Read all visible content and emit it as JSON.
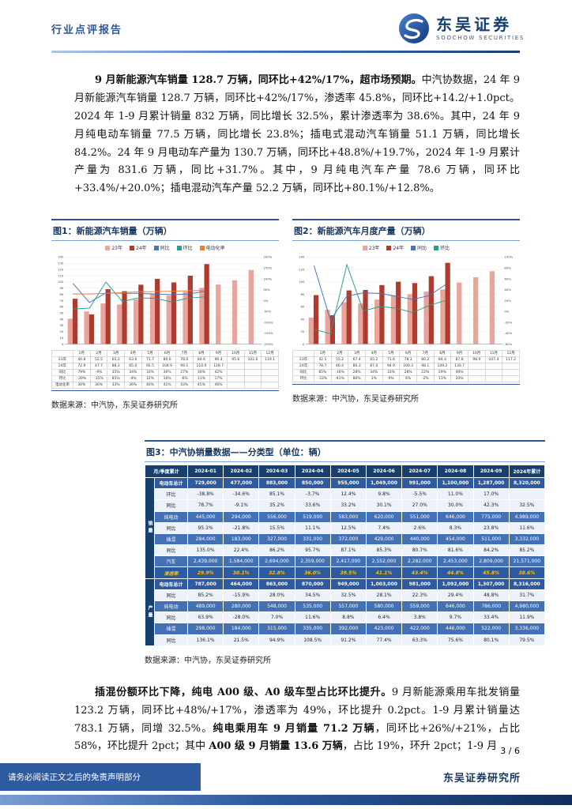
{
  "header": {
    "report_type": "行业点评报告",
    "brand_cn": "东吴证券",
    "brand_en": "SOOCHOW SECURITIES"
  },
  "para1": {
    "segments": [
      {
        "b": true,
        "t": "9 月新能源汽车销量 128.7 万辆，同环比+42%/17%，超市场预期。"
      },
      {
        "b": false,
        "t": "中汽协数据，24 年 9 月新能源汽车销量 128.7 万辆，同环比+42%/17%，渗透率 45.8%，同环比+14.2/+1.0pct。2024 年 1-9 月累计销量 832 万辆，同比增长 32.5%，累计渗透率为 38.6%。其中，24 年 9 月纯电动车销量 77.5 万辆，同比增长 23.8%；插电式混动汽车销量 51.1 万辆，同比增长 84.2%。24 年 9 月电动车产量为 130.7 万辆，同环比+48.8%/+19.7%，2024 年 1-9 月累计产量为 831.6 万辆，同比+31.7%。其中，9 月纯电汽车产量 78.6 万辆，同环比+33.4%/+20.0%；插电混动汽车产量 52.2 万辆，同环比+80.1%/+12.8%。"
      }
    ]
  },
  "para2": {
    "segments": [
      {
        "b": true,
        "t": "插混份额环比下降，纯电 A00 级、A0 级车型占比环比提升。"
      },
      {
        "b": false,
        "t": "9 月新能源乘用车批发销量 123.2 万辆，同环比+48%/+17%，渗透率为 49%，环比提升 0.2pct。1-9 月累计销量达 783.1 万辆，同增 32.5%。"
      },
      {
        "b": true,
        "t": "纯电乘用车 9 月销量 71.2 万辆"
      },
      {
        "b": false,
        "t": "，同环比+26%/+21%，占比 58%，环比提升 2pct；其中 "
      },
      {
        "b": true,
        "t": "A00 级 9 月销量 13.6 万辆"
      },
      {
        "b": false,
        "t": "，占比 19%，环升 2pct；1-9 月"
      }
    ]
  },
  "chart_data": [
    {
      "id": "fig1",
      "type": "bar",
      "subtype": "combo-bar-line",
      "title": "图1：新能源汽车销量（万辆）",
      "source": "数据来源：中汽协，东吴证券研究所",
      "months": [
        "1月",
        "2月",
        "3月",
        "4月",
        "5月",
        "6月",
        "7月",
        "8月",
        "9月",
        "10月",
        "11月",
        "12月"
      ],
      "left_axis": {
        "min": 0,
        "max": 140,
        "step": 10
      },
      "right_axis": {
        "min": -200,
        "max": 200,
        "step": 50
      },
      "bars": [
        {
          "name": "23年",
          "color": "#E9A49C",
          "values": [
            40.8,
            52.5,
            65.3,
            63.6,
            71.7,
            80.6,
            78.0,
            84.6,
            90.4,
            95.6,
            102.6,
            119.1
          ]
        },
        {
          "name": "24年",
          "color": "#B03A2E",
          "values": [
            72.9,
            47.7,
            88.3,
            85.0,
            95.5,
            104.9,
            99.1,
            110.0,
            128.7,
            null,
            null,
            null
          ]
        }
      ],
      "lines": [
        {
          "name": "同比",
          "color": "#4472C4",
          "values": [
            79,
            -9,
            35,
            34,
            33,
            30,
            27,
            30,
            42,
            null,
            null,
            null
          ]
        },
        {
          "name": "环比",
          "color": "#23A08C",
          "values": [
            -39,
            -35,
            85,
            -4,
            12,
            10,
            -6,
            11,
            17,
            null,
            null,
            null
          ]
        },
        {
          "name": "电动化率",
          "color": "#ED7D31",
          "values": [
            30,
            30,
            33,
            36,
            40,
            41,
            43,
            45,
            46,
            null,
            null,
            null
          ]
        }
      ],
      "table_rows": [
        {
          "label": "23年",
          "cells": [
            "40.8",
            "52.5",
            "65.3",
            "63.6",
            "71.7",
            "80.6",
            "78.0",
            "84.6",
            "90.4",
            "95.6",
            "102.6",
            "119.1"
          ]
        },
        {
          "label": "24年",
          "cells": [
            "72.9",
            "47.7",
            "88.3",
            "85.0",
            "95.5",
            "104.9",
            "99.1",
            "110.0",
            "128.7",
            "",
            "",
            ""
          ]
        },
        {
          "label": "同比",
          "cells": [
            "79%",
            "-9%",
            "35%",
            "34%",
            "33%",
            "30%",
            "27%",
            "30%",
            "42%",
            "",
            "",
            ""
          ]
        },
        {
          "label": "环比",
          "cells": [
            "-39%",
            "-35%",
            "85%",
            "-4%",
            "12%",
            "10%",
            "-6%",
            "11%",
            "17%",
            "",
            "",
            ""
          ]
        },
        {
          "label": "电动化率",
          "cells": [
            "30%",
            "30%",
            "33%",
            "36%",
            "40%",
            "41%",
            "43%",
            "45%",
            "46%",
            "",
            "",
            ""
          ]
        }
      ]
    },
    {
      "id": "fig2",
      "type": "bar",
      "subtype": "combo-bar-line",
      "title": "图2：新能源汽车月度产量（万辆）",
      "source": "数据来源：中汽协，东吴证券研究所",
      "months": [
        "1月",
        "2月",
        "3月",
        "4月",
        "5月",
        "6月",
        "7月",
        "8月",
        "9月",
        "10月",
        "11月",
        "12月"
      ],
      "left_axis": {
        "min": 0,
        "max": 140,
        "step": 20
      },
      "right_axis": {
        "min": -60,
        "max": 100,
        "step": 20
      },
      "bars": [
        {
          "name": "23年",
          "color": "#E9A49C",
          "values": [
            42.5,
            55.2,
            67.4,
            65.2,
            71.6,
            78.3,
            80.2,
            84.4,
            87.8,
            98.9,
            107.4,
            117.2
          ]
        },
        {
          "name": "24年",
          "color": "#B03A2E",
          "values": [
            78.7,
            46.4,
            86.3,
            87.0,
            94.9,
            100.3,
            98.1,
            109.2,
            130.7,
            null,
            null,
            null
          ]
        }
      ],
      "lines": [
        {
          "name": "同比",
          "color": "#4472C4",
          "values": [
            85,
            -16,
            28,
            34,
            33,
            28,
            22,
            29,
            49,
            null,
            null,
            null
          ]
        },
        {
          "name": "环比",
          "color": "#23A08C",
          "values": [
            -33,
            -41,
            86,
            1,
            9,
            6,
            -2,
            11,
            20,
            null,
            null,
            null
          ]
        }
      ],
      "table_rows": [
        {
          "label": "23年",
          "cells": [
            "42.5",
            "55.2",
            "67.4",
            "65.2",
            "71.6",
            "78.3",
            "80.2",
            "84.4",
            "87.8",
            "98.9",
            "107.4",
            "117.2"
          ]
        },
        {
          "label": "24年",
          "cells": [
            "78.7",
            "46.4",
            "86.3",
            "87.0",
            "94.9",
            "100.3",
            "98.1",
            "109.2",
            "130.7",
            "",
            "",
            ""
          ]
        },
        {
          "label": "同比",
          "cells": [
            "85%",
            "-16%",
            "28%",
            "34%",
            "33%",
            "28%",
            "22%",
            "29%",
            "49%",
            "",
            "",
            ""
          ]
        },
        {
          "label": "环比",
          "cells": [
            "-33%",
            "-41%",
            "86%",
            "1%",
            "9%",
            "6%",
            "-2%",
            "11%",
            "20%",
            "",
            "",
            ""
          ]
        }
      ]
    },
    {
      "id": "fig3",
      "type": "table",
      "title": "图3：中汽协销量数据——分类型（单位：辆）",
      "source": "数据来源：中汽协，东吴证券研究所",
      "columns": [
        "月/季度累计",
        "2024-01",
        "2024-02",
        "2024-03",
        "2024-04",
        "2024-05",
        "2024-06",
        "2024-07",
        "2024-08",
        "2024-09",
        "2024年累计"
      ],
      "sections": [
        {
          "label": "销量",
          "rows": [
            {
              "label": "电动车总计",
              "style": "primary",
              "cells": [
                "729,000",
                "477,000",
                "883,000",
                "850,000",
                "955,000",
                "1,049,000",
                "991,000",
                "1,100,000",
                "1,287,000",
                "8,320,000"
              ]
            },
            {
              "label": "环比",
              "style": "pct",
              "cells": [
                "-38.8%",
                "-34.6%",
                "85.1%",
                "-3.7%",
                "12.4%",
                "9.8%",
                "-5.5%",
                "11.0%",
                "17.0%",
                ""
              ]
            },
            {
              "label": "同比",
              "style": "pct",
              "cells": [
                "78.7%",
                "-9.1%",
                "35.2%",
                "33.6%",
                "33.2%",
                "30.1%",
                "27.0%",
                "30.0%",
                "42.3%",
                "32.5%"
              ]
            },
            {
              "label": "纯电动",
              "style": "sub",
              "cells": [
                "445,000",
                "294,000",
                "556,000",
                "519,000",
                "583,000",
                "620,000",
                "551,000",
                "646,000",
                "775,000",
                "4,989,000"
              ]
            },
            {
              "label": "同比",
              "style": "pct",
              "cells": [
                "95.1%",
                "-21.8%",
                "15.5%",
                "11.1%",
                "12.5%",
                "7.4%",
                "2.6%",
                "8.3%",
                "23.8%",
                "11.6%"
              ]
            },
            {
              "label": "插混",
              "style": "sub",
              "cells": [
                "284,000",
                "183,000",
                "327,000",
                "331,000",
                "372,000",
                "429,000",
                "440,000",
                "454,000",
                "511,000",
                "3,332,000"
              ]
            },
            {
              "label": "同比",
              "style": "pct",
              "cells": [
                "135.0%",
                "22.4%",
                "86.2%",
                "95.7%",
                "87.1%",
                "85.3%",
                "80.7%",
                "81.6%",
                "84.2%",
                "85.2%"
              ]
            },
            {
              "label": "汽车",
              "style": "sub",
              "cells": [
                "2,439,000",
                "1,584,000",
                "2,694,000",
                "2,359,000",
                "2,417,000",
                "2,552,000",
                "2,282,000",
                "2,453,000",
                "2,809,000",
                "21,571,000"
              ]
            },
            {
              "label": "渗透率",
              "style": "rate",
              "cells": [
                "29.9%",
                "30.1%",
                "32.8%",
                "36.0%",
                "39.5%",
                "41.1%",
                "43.4%",
                "44.8%",
                "45.8%",
                "38.6%"
              ]
            }
          ]
        },
        {
          "label": "产量",
          "rows": [
            {
              "label": "电动车总计",
              "style": "primary",
              "cells": [
                "787,000",
                "464,000",
                "863,000",
                "870,000",
                "949,000",
                "1,003,000",
                "981,000",
                "1,092,000",
                "1,307,000",
                "8,316,000"
              ]
            },
            {
              "label": "同比",
              "style": "pct",
              "cells": [
                "85.2%",
                "-15.9%",
                "28.0%",
                "34.5%",
                "32.5%",
                "28.1%",
                "22.3%",
                "29.4%",
                "48.8%",
                "31.7%"
              ]
            },
            {
              "label": "纯电动",
              "style": "sub",
              "cells": [
                "489,000",
                "280,000",
                "548,000",
                "535,000",
                "557,000",
                "580,000",
                "559,000",
                "646,000",
                "786,000",
                "4,980,000"
              ]
            },
            {
              "label": "同比",
              "style": "pct",
              "cells": [
                "63.9%",
                "-28.0%",
                "7.0%",
                "11.6%",
                "8.8%",
                "6.4%",
                "3.8%",
                "9.7%",
                "33.4%",
                "11.9%"
              ]
            },
            {
              "label": "插混",
              "style": "sub",
              "cells": [
                "298,000",
                "184,000",
                "315,000",
                "335,000",
                "392,000",
                "423,000",
                "422,000",
                "446,000",
                "522,000",
                "3,336,000"
              ]
            },
            {
              "label": "同比",
              "style": "pct",
              "cells": [
                "136.1%",
                "21.5%",
                "94.9%",
                "108.5%",
                "91.2%",
                "77.4%",
                "63.3%",
                "75.6%",
                "80.1%",
                "79.5%"
              ]
            }
          ]
        }
      ]
    }
  ],
  "footer": {
    "page": "3 / 6",
    "institute": "东吴证券研究所",
    "disclaimer": "请务必阅读正文之后的免责声明部分"
  }
}
